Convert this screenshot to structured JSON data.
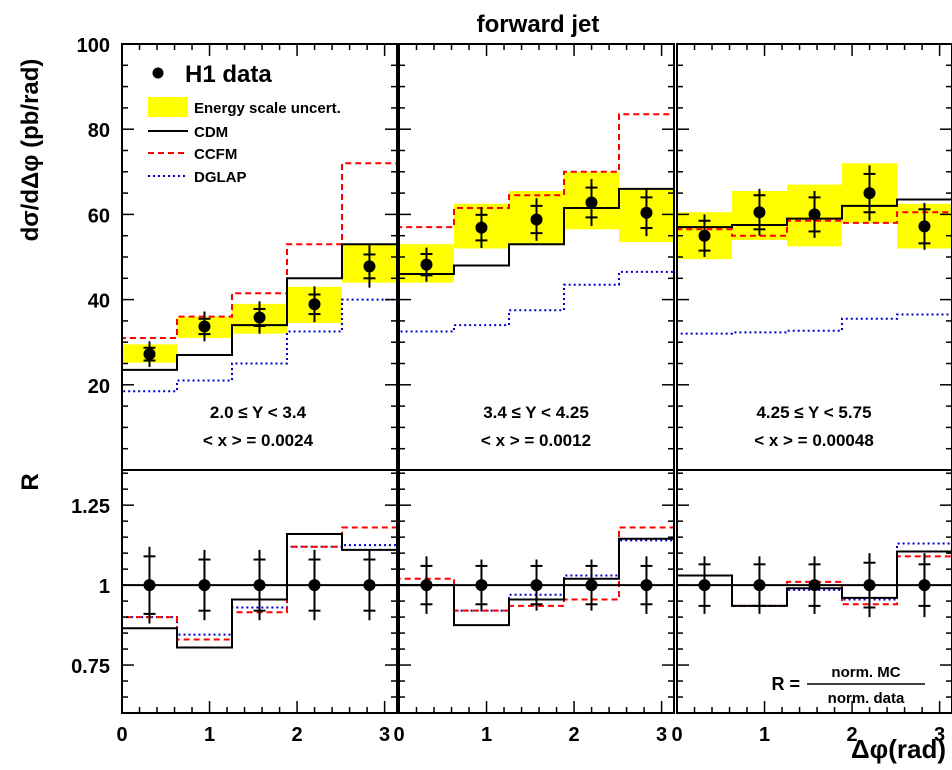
{
  "chart_data": {
    "type": "line",
    "title": "forward jet",
    "xlabel": "Δφ(rad)",
    "ylabel_top": "dσ/dΔφ (pb/rad)",
    "ylabel_bottom": "R",
    "x_ticks": [
      "0",
      "1",
      "2",
      "3"
    ],
    "x_range": [
      0,
      3.1416
    ],
    "top": {
      "ylim": [
        0,
        100
      ],
      "y_ticks": [
        "20",
        "40",
        "60",
        "80",
        "100"
      ],
      "y_tick_values": [
        20,
        40,
        60,
        80,
        100
      ],
      "legend": {
        "placement": "top-left",
        "data": "H1 data",
        "band": "Energy scale uncert.",
        "cdm": "CDM",
        "ccfm": "CCFM",
        "dglap": "DGLAP"
      }
    },
    "bottom": {
      "ylim": [
        0.6,
        1.36
      ],
      "y_ticks": [
        "0.75",
        "1",
        "1.25"
      ],
      "y_tick_values": [
        0.75,
        1.0,
        1.25
      ],
      "formula": {
        "lhs": "R =",
        "num": "norm. MC",
        "den": "norm. data"
      }
    },
    "bin_edges": [
      0,
      0.6283,
      1.2566,
      1.885,
      2.5133,
      3.1416
    ],
    "bin_centers": [
      0.314,
      0.942,
      1.571,
      2.199,
      2.827
    ],
    "colors": {
      "band": "#ffff00",
      "cdm": "#000000",
      "ccfm": "#ff0000",
      "dglap": "#0000cc"
    },
    "panels": [
      {
        "label_y": "2.0 ≤ Y < 3.4",
        "label_x": "< x > = 0.0024",
        "data": [
          27.2,
          33.7,
          35.8,
          38.9,
          47.8
        ],
        "err_stat": [
          1.5,
          1.8,
          2.0,
          2.3,
          2.8
        ],
        "err_tot": [
          3.0,
          3.5,
          3.8,
          4.2,
          5.0
        ],
        "band_low": [
          25.2,
          31.0,
          32.0,
          34.5,
          44.0
        ],
        "band_high": [
          29.5,
          36.0,
          39.0,
          43.0,
          53.0
        ],
        "cdm": [
          23.5,
          27.0,
          34.0,
          45.0,
          53.0
        ],
        "ccfm": [
          31.0,
          36.0,
          41.5,
          53.0,
          72.0
        ],
        "dglap": [
          18.5,
          21.0,
          25.0,
          32.5,
          40.0
        ],
        "r_data": [
          1.0,
          1.0,
          1.0,
          1.0,
          1.0
        ],
        "r_err_stat": [
          0.09,
          0.08,
          0.08,
          0.08,
          0.08
        ],
        "r_err_tot": [
          0.12,
          0.11,
          0.11,
          0.11,
          0.11
        ],
        "r_cdm": [
          0.865,
          0.805,
          0.955,
          1.16,
          1.11
        ],
        "r_ccfm": [
          0.9,
          0.83,
          0.915,
          1.12,
          1.18
        ],
        "r_dglap": [
          0.9,
          0.845,
          0.93,
          1.12,
          1.125
        ]
      },
      {
        "label_y": "3.4 ≤ Y < 4.25",
        "label_x": "< x > = 0.0012",
        "data": [
          48.2,
          56.9,
          58.8,
          62.8,
          60.4
        ],
        "err_stat": [
          2.5,
          3.0,
          3.2,
          3.5,
          3.6
        ],
        "err_tot": [
          4.0,
          4.8,
          5.0,
          5.5,
          5.5
        ],
        "band_low": [
          44.0,
          52.0,
          53.0,
          56.5,
          53.5
        ],
        "band_high": [
          53.0,
          62.5,
          65.5,
          70.0,
          66.0
        ],
        "cdm": [
          46.0,
          48.0,
          53.0,
          61.5,
          66.0
        ],
        "ccfm": [
          57.0,
          61.5,
          64.5,
          70.0,
          83.5
        ],
        "dglap": [
          32.5,
          34.0,
          37.5,
          43.5,
          46.5
        ],
        "r_data": [
          1.0,
          1.0,
          1.0,
          1.0,
          1.0
        ],
        "r_err_stat": [
          0.06,
          0.06,
          0.06,
          0.06,
          0.06
        ],
        "r_err_tot": [
          0.09,
          0.08,
          0.08,
          0.08,
          0.09
        ],
        "r_cdm": [
          1.0,
          0.875,
          0.955,
          1.02,
          1.145
        ],
        "r_ccfm": [
          1.02,
          0.92,
          0.935,
          0.955,
          1.18
        ],
        "r_dglap": [
          1.0,
          0.92,
          0.97,
          1.03,
          1.14
        ]
      },
      {
        "label_y": "4.25 ≤ Y < 5.75",
        "label_x": "< x > = 0.00048",
        "data": [
          55.0,
          60.5,
          60.0,
          65.0,
          57.2
        ],
        "err_stat": [
          3.5,
          4.0,
          4.0,
          4.5,
          4.0
        ],
        "err_tot": [
          5.0,
          5.5,
          5.5,
          6.5,
          5.5
        ],
        "band_low": [
          49.5,
          54.0,
          52.5,
          58.0,
          52.0
        ],
        "band_high": [
          60.5,
          65.5,
          67.0,
          72.0,
          62.5
        ],
        "cdm": [
          57.0,
          57.5,
          59.0,
          62.0,
          63.5
        ],
        "ccfm": [
          56.5,
          55.0,
          58.5,
          58.0,
          60.5
        ],
        "dglap": [
          32.0,
          32.3,
          32.7,
          35.5,
          36.5
        ],
        "r_data": [
          1.0,
          1.0,
          1.0,
          1.0,
          1.0
        ],
        "r_err_stat": [
          0.065,
          0.065,
          0.065,
          0.07,
          0.065
        ],
        "r_err_tot": [
          0.09,
          0.09,
          0.09,
          0.1,
          0.1
        ],
        "r_cdm": [
          1.03,
          0.935,
          0.99,
          0.96,
          1.105
        ],
        "r_ccfm": [
          1.03,
          0.935,
          1.01,
          0.94,
          1.09
        ],
        "r_dglap": [
          1.03,
          0.935,
          0.985,
          0.955,
          1.13
        ]
      }
    ]
  }
}
